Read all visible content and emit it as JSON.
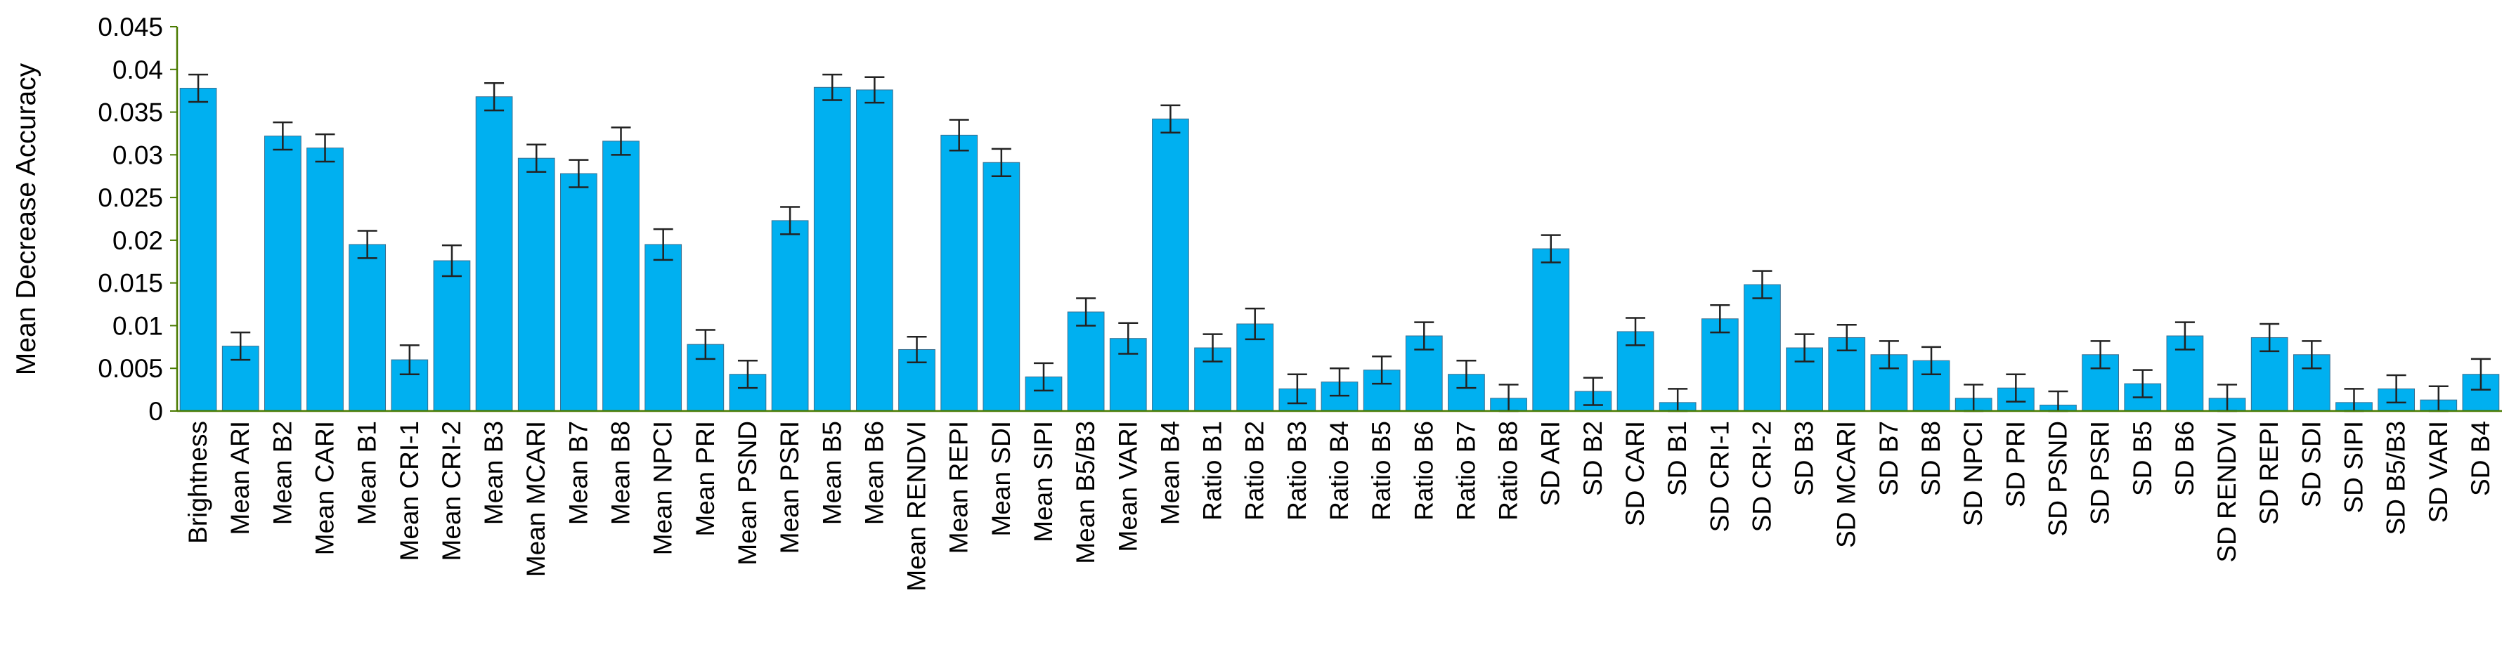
{
  "chart_data": {
    "type": "bar",
    "title": "",
    "xlabel": "",
    "ylabel": "Mean Decrease Accuracy",
    "ylim": [
      0,
      0.045
    ],
    "yticks": [
      "0",
      "0.005",
      "0.01",
      "0.015",
      "0.02",
      "0.025",
      "0.03",
      "0.035",
      "0.04",
      "0.045"
    ],
    "grid": false,
    "legend": "none",
    "bar_color": "#00b0f0",
    "axis_color": "#4a7a00",
    "categories": [
      "Brightness",
      "Mean ARI",
      "Mean B2",
      "Mean CARI",
      "Mean B1",
      "Mean CRI-1",
      "Mean CRI-2",
      "Mean B3",
      "Mean MCARI",
      "Mean B7",
      "Mean B8",
      "Mean NPCI",
      "Mean PRI",
      "Mean PSND",
      "Mean PSRI",
      "Mean B5",
      "Mean B6",
      "Mean RENDVI",
      "Mean REPI",
      "Mean SDI",
      "Mean SIPI",
      "Mean B5/B3",
      "Mean VARI",
      "Mean B4",
      "Ratio B1",
      "Ratio B2",
      "Ratio B3",
      "Ratio B4",
      "Ratio B5",
      "Ratio B6",
      "Ratio B7",
      "Ratio B8",
      "SD ARI",
      "SD B2",
      "SD CARI",
      "SD B1",
      "SD CRI-1",
      "SD CRI-2",
      "SD B3",
      "SD MCARI",
      "SD B7",
      "SD B8",
      "SD NPCI",
      "SD PRI",
      "SD PSND",
      "SD PSRI",
      "SD B5",
      "SD B6",
      "SD RENDVI",
      "SD REPI",
      "SD SDI",
      "SD SIPI",
      "SD B5/B3",
      "SD VARI",
      "SD B4"
    ],
    "values": [
      0.0378,
      0.0076,
      0.0322,
      0.0308,
      0.0195,
      0.006,
      0.0176,
      0.0368,
      0.0296,
      0.0278,
      0.0316,
      0.0195,
      0.0078,
      0.0043,
      0.0223,
      0.0379,
      0.0376,
      0.0072,
      0.0323,
      0.0291,
      0.004,
      0.0116,
      0.0085,
      0.0342,
      0.0074,
      0.0102,
      0.0026,
      0.0034,
      0.0048,
      0.0088,
      0.0043,
      0.0015,
      0.019,
      0.0023,
      0.0093,
      0.001,
      0.0108,
      0.0148,
      0.0074,
      0.0086,
      0.0066,
      0.0059,
      0.0015,
      0.0027,
      0.0007,
      0.0066,
      0.0032,
      0.0088,
      0.0015,
      0.0086,
      0.0066,
      0.001,
      0.0026,
      0.0013,
      0.0043
    ],
    "error": [
      0.0016,
      0.0016,
      0.0016,
      0.0016,
      0.0016,
      0.0017,
      0.0018,
      0.0016,
      0.0016,
      0.0016,
      0.0016,
      0.0018,
      0.0017,
      0.0016,
      0.0016,
      0.0015,
      0.0015,
      0.0015,
      0.0018,
      0.0016,
      0.0016,
      0.0016,
      0.0018,
      0.0016,
      0.0016,
      0.0018,
      0.0017,
      0.0016,
      0.0016,
      0.0016,
      0.0016,
      0.0016,
      0.0016,
      0.0016,
      0.0016,
      0.0016,
      0.0016,
      0.0016,
      0.0016,
      0.0015,
      0.0016,
      0.0016,
      0.0016,
      0.0016,
      0.0016,
      0.0016,
      0.0016,
      0.0016,
      0.0016,
      0.0016,
      0.0016,
      0.0016,
      0.0016,
      0.0016,
      0.0018
    ]
  }
}
